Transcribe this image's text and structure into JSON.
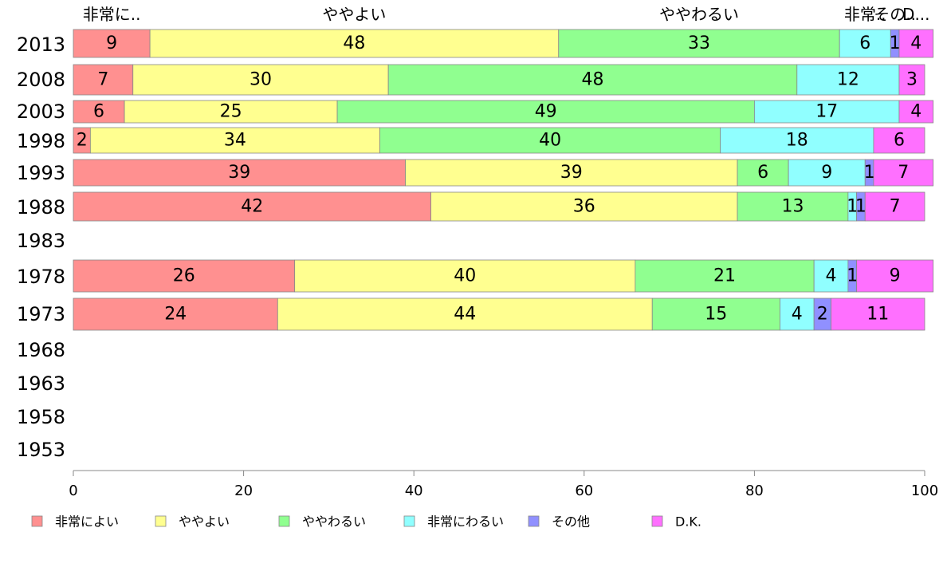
{
  "chart_data": {
    "type": "bar",
    "orientation": "horizontal",
    "stacked": true,
    "categories": [
      "2013",
      "2008",
      "2003",
      "1998",
      "1993",
      "1988",
      "1983",
      "1978",
      "1973",
      "1968",
      "1963",
      "1958",
      "1953"
    ],
    "series": [
      {
        "name": "非常によい",
        "color": "#ff9090",
        "values": [
          9,
          7,
          6,
          2,
          39,
          42,
          null,
          26,
          24,
          null,
          null,
          null,
          null
        ]
      },
      {
        "name": "ややよい",
        "color": "#ffff90",
        "values": [
          48,
          30,
          25,
          34,
          39,
          36,
          null,
          40,
          44,
          null,
          null,
          null,
          null
        ]
      },
      {
        "name": "ややわるい",
        "color": "#90ff90",
        "values": [
          33,
          48,
          49,
          40,
          6,
          13,
          null,
          21,
          15,
          null,
          null,
          null,
          null
        ]
      },
      {
        "name": "非常にわるい",
        "color": "#90ffff",
        "values": [
          6,
          12,
          17,
          18,
          9,
          1,
          null,
          4,
          4,
          null,
          null,
          null,
          null
        ]
      },
      {
        "name": "その他",
        "color": "#9090ff",
        "values": [
          1,
          0,
          0,
          0,
          1,
          1,
          null,
          1,
          2,
          null,
          null,
          null,
          null
        ]
      },
      {
        "name": "D.K.",
        "color": "#ff70ff",
        "values": [
          4,
          3,
          4,
          6,
          7,
          7,
          null,
          9,
          11,
          null,
          null,
          null,
          null
        ]
      }
    ],
    "top_labels": [
      "非常に..",
      "ややよい",
      "ややわるい",
      "非常..",
      "その..",
      "D..."
    ],
    "xlim": [
      0,
      100
    ],
    "xticks": [
      0,
      20,
      40,
      60,
      80,
      100
    ],
    "legend_position": "bottom",
    "grid": false
  }
}
